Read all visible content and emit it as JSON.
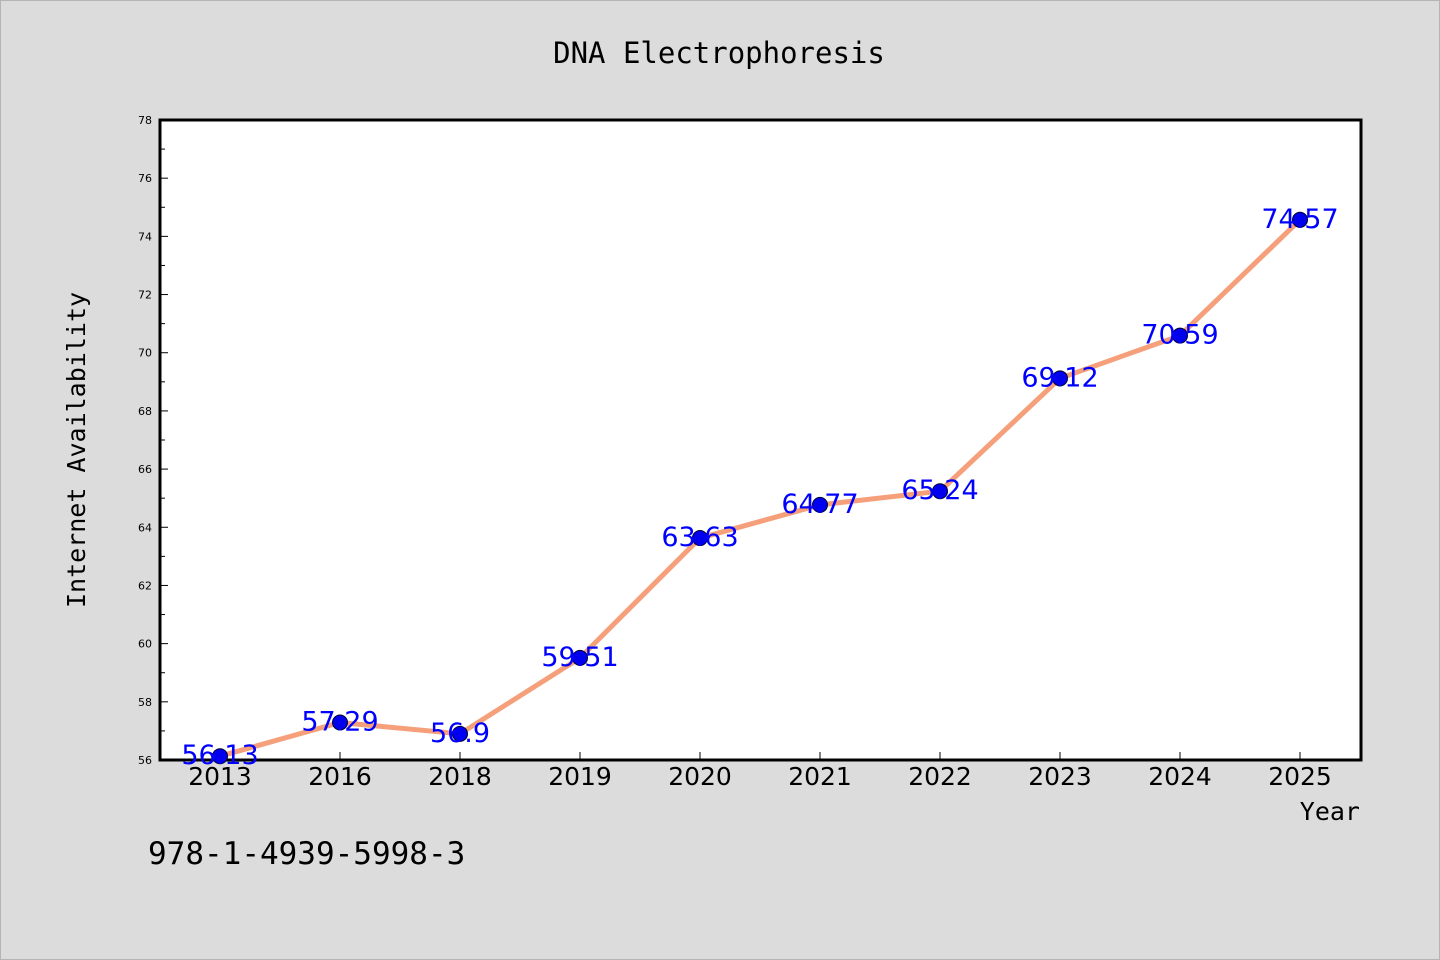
{
  "chart_data": {
    "type": "line",
    "title": "DNA Electrophoresis",
    "xlabel": "Year",
    "ylabel": "Internet Availability",
    "categories": [
      "2013",
      "2016",
      "2018",
      "2019",
      "2020",
      "2021",
      "2022",
      "2023",
      "2024",
      "2025"
    ],
    "series": [
      {
        "values": [
          56.13,
          57.29,
          56.9,
          59.51,
          63.63,
          64.77,
          65.24,
          69.12,
          70.59,
          74.57
        ],
        "labels": [
          "56.13",
          "57.29",
          "56.9",
          "59.51",
          "63.63",
          "64.77",
          "65.24",
          "69.12",
          "70.59",
          "74.57"
        ]
      }
    ],
    "ylim": [
      56,
      78
    ],
    "yticks": [
      56,
      58,
      60,
      62,
      64,
      66,
      68,
      70,
      72,
      74,
      76,
      78
    ],
    "grid": false,
    "legend": "none",
    "colors": {
      "line": "#f5a07a",
      "marker": "#0000ee",
      "data_label": "#0000ff",
      "background": "#dcdcdc",
      "plot_background": "#ffffff"
    }
  },
  "footer_text": "978-1-4939-5998-3"
}
